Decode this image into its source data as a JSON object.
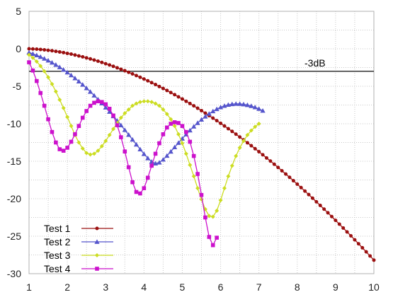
{
  "chart_data": {
    "type": "line",
    "title": "",
    "xlabel": "",
    "ylabel": "",
    "xlim": [
      1,
      10
    ],
    "ylim": [
      -30,
      5
    ],
    "xticks": [
      1,
      2,
      3,
      4,
      5,
      6,
      7,
      8,
      9,
      10
    ],
    "yticks": [
      5,
      0,
      -5,
      -10,
      -15,
      -20,
      -25,
      -30
    ],
    "grid": true,
    "grid_style": "dotted",
    "legend_position": "bottom-left",
    "reference_line": {
      "y": -3,
      "label": "-3dB",
      "color": "#333333"
    },
    "x_step": 0.1,
    "series": [
      {
        "name": "Test 1",
        "color": "#9B1010",
        "marker": "circle",
        "values": [
          0,
          -0.02,
          -0.05,
          -0.09,
          -0.14,
          -0.2,
          -0.26,
          -0.34,
          -0.42,
          -0.51,
          -0.61,
          -0.71,
          -0.83,
          -0.95,
          -1.07,
          -1.21,
          -1.35,
          -1.5,
          -1.65,
          -1.82,
          -1.99,
          -2.16,
          -2.34,
          -2.53,
          -2.73,
          -2.93,
          -3.14,
          -3.35,
          -3.57,
          -3.8,
          -4.03,
          -4.27,
          -4.52,
          -4.77,
          -5.03,
          -5.29,
          -5.56,
          -5.84,
          -6.12,
          -6.41,
          -6.7,
          -7,
          -7.3,
          -7.61,
          -7.93,
          -8.25,
          -8.58,
          -8.91,
          -9.25,
          -9.59,
          -9.94,
          -10.3,
          -10.66,
          -11.02,
          -11.39,
          -11.77,
          -12.15,
          -12.54,
          -12.93,
          -13.33,
          -13.73,
          -14.14,
          -14.56,
          -14.98,
          -15.4,
          -15.83,
          -16.27,
          -16.71,
          -17.15,
          -17.6,
          -18.06,
          -18.52,
          -18.98,
          -19.45,
          -19.93,
          -20.41,
          -20.9,
          -21.39,
          -21.88,
          -22.38,
          -22.89,
          -23.4,
          -23.91,
          -24.43,
          -24.95,
          -25.48,
          -26.01,
          -26.55,
          -27.09,
          -27.64,
          -28.19
        ],
        "values_trimmed_to_x10": true
      },
      {
        "name": "Test 2",
        "color": "#5555CC",
        "marker": "triangle",
        "values": [
          -0.5,
          -0.67,
          -0.86,
          -1.07,
          -1.31,
          -1.56,
          -1.84,
          -2.13,
          -2.45,
          -2.79,
          -3.15,
          -3.53,
          -3.93,
          -4.35,
          -4.79,
          -5.25,
          -5.73,
          -6.23,
          -6.75,
          -7.28,
          -7.83,
          -8.4,
          -8.99,
          -9.59,
          -10.2,
          -10.83,
          -11.47,
          -12.11,
          -12.77,
          -13.41,
          -14.03,
          -14.6,
          -15.06,
          -15.3,
          -15.17,
          -14.78,
          -14.27,
          -13.71,
          -13.13,
          -12.55,
          -11.98,
          -11.42,
          -10.88,
          -10.37,
          -9.89,
          -9.44,
          -9.03,
          -8.66,
          -8.33,
          -8.04,
          -7.8,
          -7.61,
          -7.47,
          -7.38,
          -7.34,
          -7.35,
          -7.4,
          -7.5,
          -7.63,
          -7.8,
          -8.01,
          -8.26
        ],
        "values_trimmed_to_x10": false
      },
      {
        "name": "Test 3",
        "color": "#CCDD22",
        "marker": "diamond",
        "values": [
          -0.8,
          -1.2,
          -1.7,
          -2.3,
          -3,
          -3.8,
          -4.7,
          -5.7,
          -6.8,
          -7.9,
          -9.1,
          -10.3,
          -11.5,
          -12.5,
          -13.3,
          -13.9,
          -14.1,
          -14,
          -13.6,
          -13,
          -12.3,
          -11.5,
          -10.7,
          -9.9,
          -9.2,
          -8.6,
          -8.1,
          -7.6,
          -7.3,
          -7.1,
          -7,
          -7,
          -7.1,
          -7.3,
          -7.6,
          -8.1,
          -8.7,
          -9.4,
          -10.3,
          -11.4,
          -12.6,
          -14,
          -15.5,
          -17,
          -18.6,
          -20.1,
          -21.4,
          -22.3,
          -22.4,
          -21.6,
          -20.2,
          -18.6,
          -17,
          -15.6,
          -14.3,
          -13.2,
          -12.3,
          -11.5,
          -10.9,
          -10.4,
          -10
        ]
      },
      {
        "name": "Test 4",
        "color": "#CC11CC",
        "marker": "square",
        "values": [
          -1.8,
          -2.9,
          -4.3,
          -5.9,
          -7.6,
          -9.4,
          -11.1,
          -12.5,
          -13.4,
          -13.6,
          -13.2,
          -12.4,
          -11.4,
          -10.3,
          -9.2,
          -8.3,
          -7.6,
          -7.2,
          -7,
          -7.1,
          -7.4,
          -8,
          -8.9,
          -10.2,
          -11.8,
          -13.7,
          -15.8,
          -17.8,
          -19.1,
          -19.3,
          -18.6,
          -17.2,
          -15.6,
          -14,
          -12.6,
          -11.4,
          -10.5,
          -10,
          -9.8,
          -9.9,
          -10.3,
          -11.1,
          -12.4,
          -14.3,
          -16.7,
          -19.5,
          -22.5,
          -25.1,
          -26.2,
          -25.2
        ]
      }
    ]
  }
}
